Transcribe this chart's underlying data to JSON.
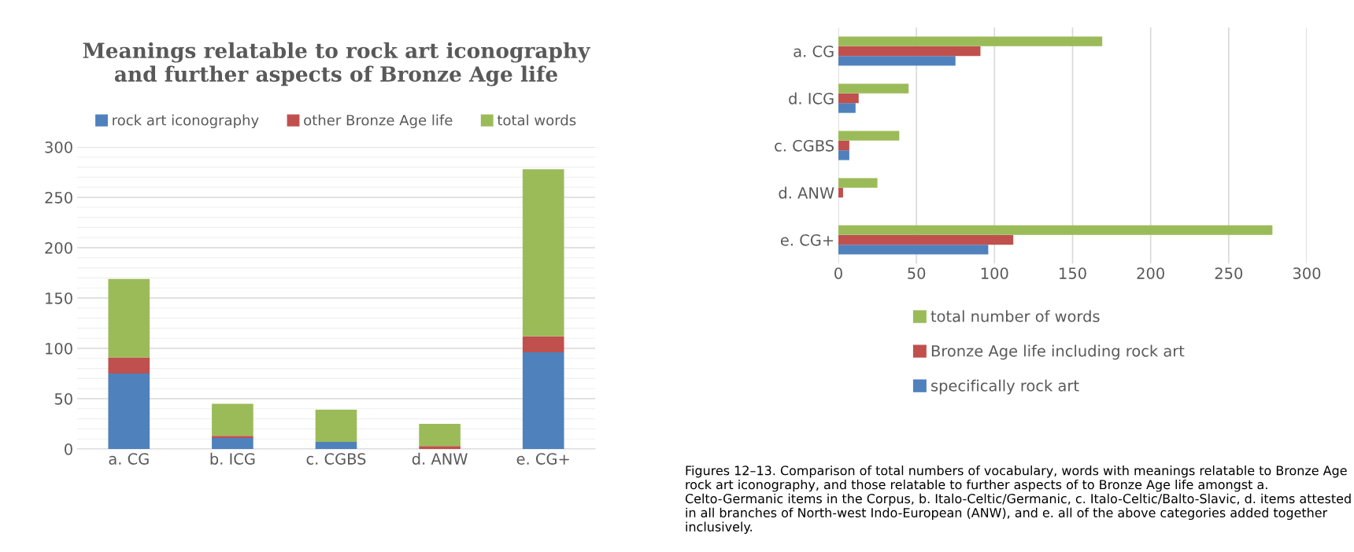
{
  "chart_data": [
    {
      "type": "bar",
      "stacked": true,
      "title": "Meanings relatable to rock art iconography\nand further aspects of Bronze Age life",
      "categories": [
        "a. CG",
        "b. ICG",
        "c. CGBS",
        "d. ANW",
        "e. CG+"
      ],
      "series": [
        {
          "name": "rock art iconography",
          "color": "#4f81bd",
          "values": [
            75,
            11,
            7,
            0,
            96
          ]
        },
        {
          "name": "other Bronze Age life",
          "color": "#c0504d",
          "values": [
            16,
            2,
            0,
            3,
            16
          ]
        },
        {
          "name": "total words",
          "color": "#9bbb59",
          "values": [
            78,
            32,
            32,
            22,
            166
          ]
        }
      ],
      "ylim": [
        0,
        300
      ],
      "yticks": [
        0,
        {
          "value": 10,
          "label": null
        },
        {
          "value": 20,
          "label": null
        },
        {
          "value": 30,
          "label": null
        },
        {
          "value": 40,
          "label": null
        },
        50,
        {
          "value": 60,
          "label": null
        },
        {
          "value": 70,
          "label": null
        },
        {
          "value": 80,
          "label": null
        },
        {
          "value": 90,
          "label": null
        },
        100,
        {
          "value": 110,
          "label": null
        },
        {
          "value": 120,
          "label": null
        },
        {
          "value": 130,
          "label": null
        },
        {
          "value": 140,
          "label": null
        },
        150,
        {
          "value": 160,
          "label": null
        },
        {
          "value": 170,
          "label": null
        },
        {
          "value": 180,
          "label": null
        },
        {
          "value": 190,
          "label": null
        },
        200,
        {
          "value": 210,
          "label": null
        },
        {
          "value": 220,
          "label": null
        },
        {
          "value": 230,
          "label": null
        },
        {
          "value": 240,
          "label": null
        },
        250,
        {
          "value": 260,
          "label": null
        },
        {
          "value": 270,
          "label": null
        },
        {
          "value": 280,
          "label": null
        },
        {
          "value": 290,
          "label": null
        },
        300
      ],
      "grid": "y",
      "legend": "top"
    },
    {
      "type": "bar",
      "orientation": "horizontal",
      "categories": [
        "a. CG",
        "d. ICG",
        "c. CGBS",
        "d. ANW",
        "e. CG+"
      ],
      "series": [
        {
          "name": "specifically rock art",
          "color": "#4f81bd",
          "values": [
            75,
            11,
            7,
            0,
            96
          ]
        },
        {
          "name": "Bronze Age life including rock art",
          "color": "#c0504d",
          "values": [
            91,
            13,
            7,
            3,
            112
          ]
        },
        {
          "name": "total number of words",
          "color": "#9bbb59",
          "values": [
            169,
            45,
            39,
            25,
            278
          ]
        }
      ],
      "xlim": [
        0,
        300
      ],
      "xticks": [
        0,
        50,
        100,
        150,
        200,
        250,
        300
      ],
      "grid": "x",
      "legend": "bottom",
      "annotations": [
        "Figures 12–13. Comparison of total numbers of vocabulary, words with meanings relatable to Bronze Age rock art iconography, and those relatable to further aspects of to Bronze Age life amongst a. Celto-Germanic items in the Corpus, b. Italo-Celtic/Germanic, c. Italo-Celtic/Balto-Slavic, d. items attested in all branches of North-west Indo-European (ANW), and e. all of the above categories added together inclusively."
      ]
    }
  ]
}
